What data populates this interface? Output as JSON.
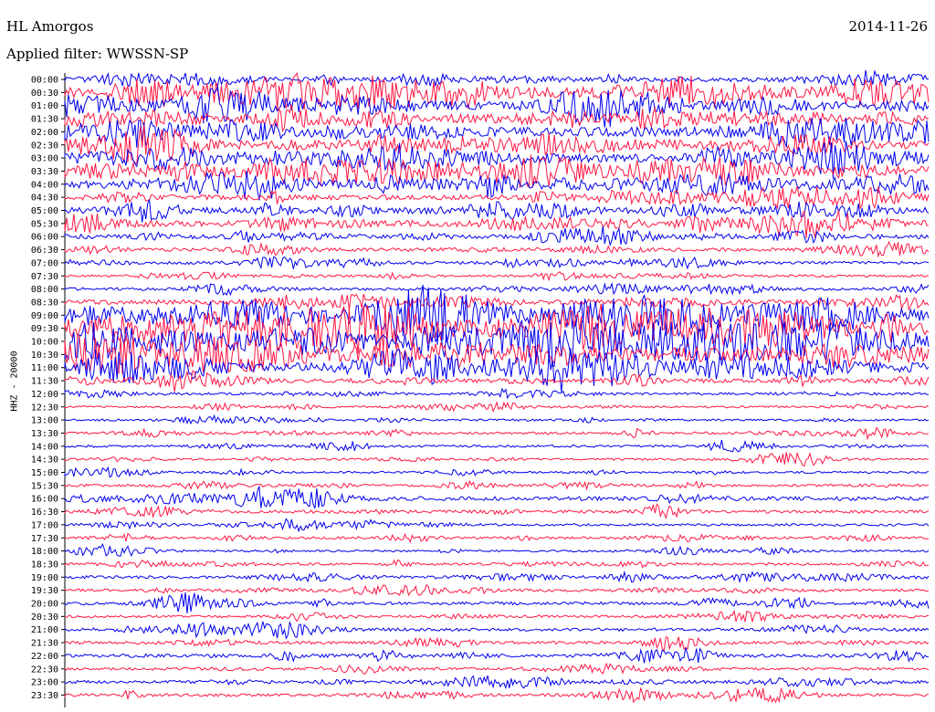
{
  "header": {
    "station": "HL Amorgos",
    "date": "2014-11-26",
    "filter": "Applied filter: WWSSN-SP"
  },
  "axis": {
    "ylabel": "HHZ - 20000"
  },
  "colors": {
    "trace_a": "#0000ee",
    "trace_b": "#ff1744",
    "axis": "#000000",
    "background": "#ffffff"
  },
  "chart_data": {
    "type": "line",
    "title": "HL Amorgos",
    "subtitle": "Applied filter: WWSSN-SP",
    "ylabel": "HHZ - 20000",
    "xlabel": "",
    "grid": false,
    "legend": "none",
    "row_interval_minutes": 30,
    "trace_colors": [
      "#0000ee",
      "#ff1744"
    ],
    "rows": [
      {
        "label": "00:00",
        "activity": 0.5
      },
      {
        "label": "00:30",
        "activity": 0.85
      },
      {
        "label": "01:00",
        "activity": 0.75
      },
      {
        "label": "01:30",
        "activity": 0.8
      },
      {
        "label": "02:00",
        "activity": 0.8
      },
      {
        "label": "02:30",
        "activity": 0.7
      },
      {
        "label": "03:00",
        "activity": 0.75
      },
      {
        "label": "03:30",
        "activity": 0.85
      },
      {
        "label": "04:00",
        "activity": 0.7
      },
      {
        "label": "04:30",
        "activity": 0.55
      },
      {
        "label": "05:00",
        "activity": 0.6
      },
      {
        "label": "05:30",
        "activity": 0.6
      },
      {
        "label": "06:00",
        "activity": 0.5
      },
      {
        "label": "06:30",
        "activity": 0.4
      },
      {
        "label": "07:00",
        "activity": 0.35
      },
      {
        "label": "07:30",
        "activity": 0.3
      },
      {
        "label": "08:00",
        "activity": 0.35
      },
      {
        "label": "08:30",
        "activity": 0.5
      },
      {
        "label": "09:00",
        "activity": 0.95
      },
      {
        "label": "09:30",
        "activity": 1.0
      },
      {
        "label": "10:00",
        "activity": 1.0
      },
      {
        "label": "10:30",
        "activity": 0.95
      },
      {
        "label": "11:00",
        "activity": 0.85
      },
      {
        "label": "11:30",
        "activity": 0.45
      },
      {
        "label": "12:00",
        "activity": 0.3
      },
      {
        "label": "12:30",
        "activity": 0.25
      },
      {
        "label": "13:00",
        "activity": 0.25
      },
      {
        "label": "13:30",
        "activity": 0.3
      },
      {
        "label": "14:00",
        "activity": 0.3
      },
      {
        "label": "14:30",
        "activity": 0.25
      },
      {
        "label": "15:00",
        "activity": 0.25
      },
      {
        "label": "15:30",
        "activity": 0.3
      },
      {
        "label": "16:00",
        "activity": 0.45
      },
      {
        "label": "16:30",
        "activity": 0.35
      },
      {
        "label": "17:00",
        "activity": 0.3
      },
      {
        "label": "17:30",
        "activity": 0.3
      },
      {
        "label": "18:00",
        "activity": 0.25
      },
      {
        "label": "18:30",
        "activity": 0.3
      },
      {
        "label": "19:00",
        "activity": 0.35
      },
      {
        "label": "19:30",
        "activity": 0.35
      },
      {
        "label": "20:00",
        "activity": 0.35
      },
      {
        "label": "20:30",
        "activity": 0.3
      },
      {
        "label": "21:00",
        "activity": 0.35
      },
      {
        "label": "21:30",
        "activity": 0.35
      },
      {
        "label": "22:00",
        "activity": 0.4
      },
      {
        "label": "22:30",
        "activity": 0.3
      },
      {
        "label": "23:00",
        "activity": 0.35
      },
      {
        "label": "23:30",
        "activity": 0.35
      }
    ]
  }
}
